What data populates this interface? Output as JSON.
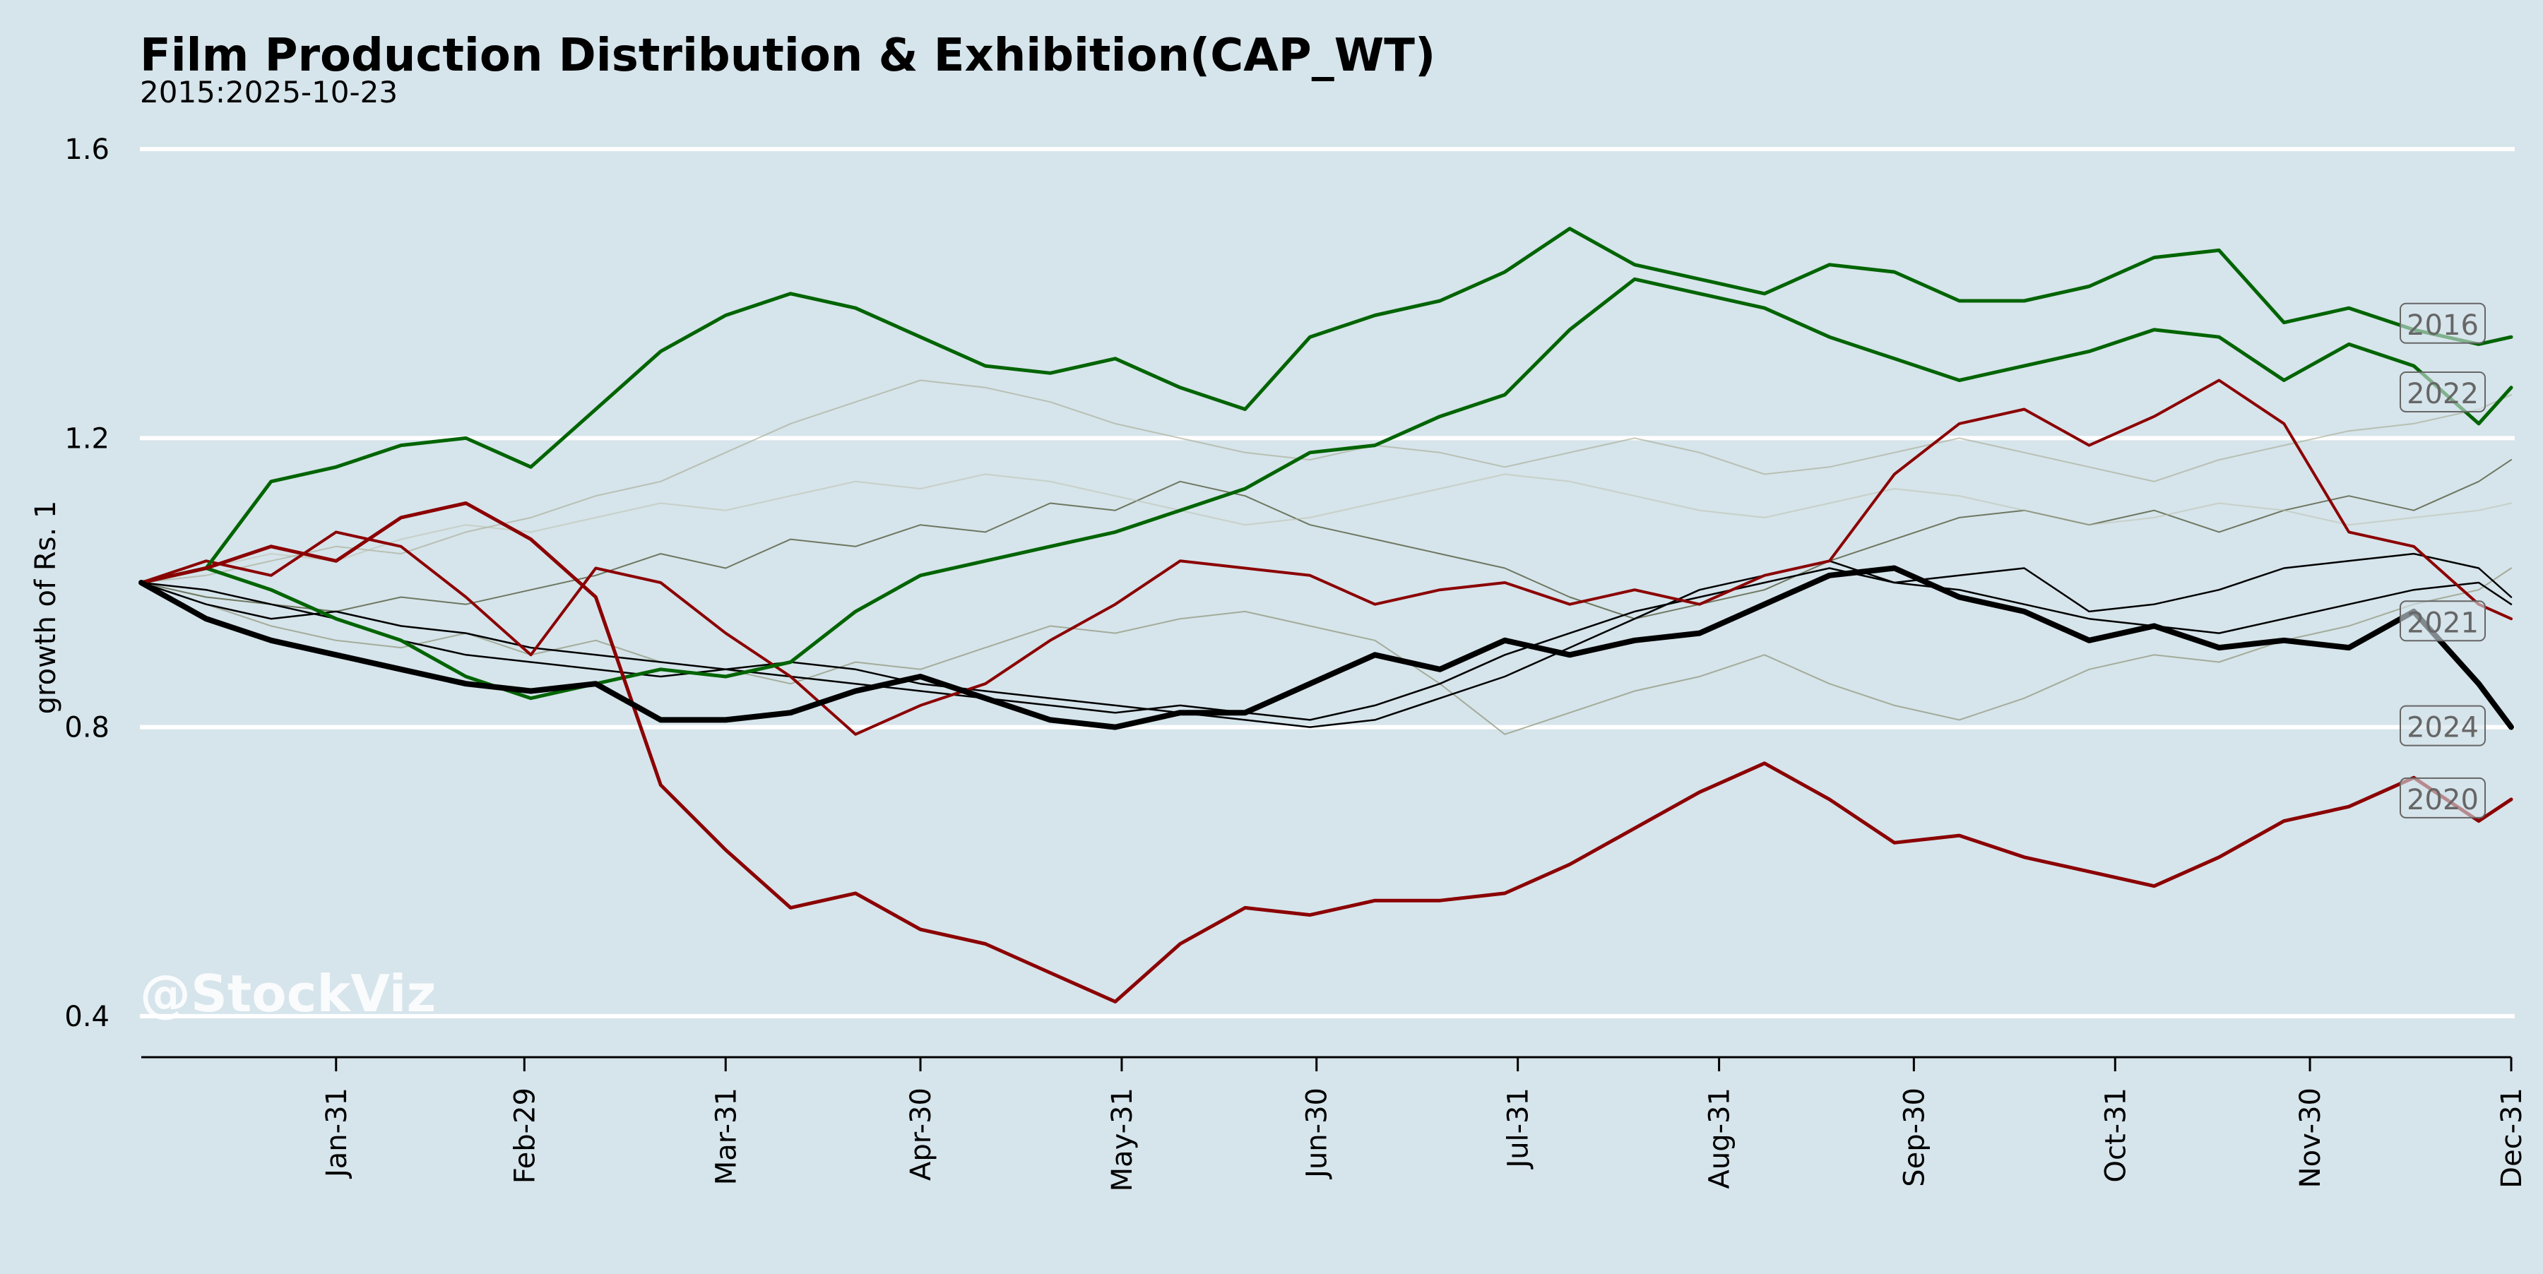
{
  "colors": {
    "background": "#d6e4eb",
    "gridline": "#ffffff",
    "up_year": "#006400",
    "down_year": "#8b0000",
    "current_year": "#000000",
    "label_text": "#666666"
  },
  "chart_data": {
    "type": "line",
    "title": "Film Production Distribution & Exhibition(CAP_WT)",
    "subtitle": "2015:2025-10-23",
    "xlabel": "",
    "ylabel": "growth of Rs. 1",
    "watermark": "@StockViz",
    "x_domain": [
      "01-01",
      "12-31"
    ],
    "xlim": [
      0,
      365
    ],
    "ylim": [
      0.35,
      1.65
    ],
    "yticks": [
      0.4,
      0.8,
      1.2,
      1.6
    ],
    "ytick_labels": [
      "0.4",
      "0.8",
      "1.2",
      "1.6"
    ],
    "xticks": [
      "Jan-31",
      "Feb-29",
      "Mar-31",
      "Apr-30",
      "May-31",
      "Jun-30",
      "Jul-31",
      "Aug-31",
      "Sep-30",
      "Oct-31",
      "Nov-30",
      "Dec-31"
    ],
    "xtick_days": [
      30,
      59,
      90,
      120,
      151,
      181,
      212,
      243,
      273,
      304,
      334,
      365
    ],
    "grid": "horizontal",
    "legend": "end-of-line labels",
    "series": [
      {
        "label": "2016",
        "color": "#006400",
        "width": 5,
        "opacity": 1,
        "x": [
          0,
          10,
          20,
          30,
          40,
          50,
          60,
          70,
          80,
          90,
          100,
          110,
          120,
          130,
          140,
          150,
          160,
          170,
          180,
          190,
          200,
          210,
          220,
          230,
          240,
          250,
          260,
          270,
          280,
          290,
          300,
          310,
          320,
          330,
          340,
          350,
          360,
          365
        ],
        "y": [
          1.0,
          1.02,
          1.14,
          1.16,
          1.19,
          1.2,
          1.16,
          1.24,
          1.32,
          1.37,
          1.4,
          1.38,
          1.34,
          1.3,
          1.29,
          1.31,
          1.27,
          1.24,
          1.34,
          1.37,
          1.39,
          1.43,
          1.49,
          1.44,
          1.42,
          1.4,
          1.44,
          1.43,
          1.39,
          1.39,
          1.41,
          1.45,
          1.46,
          1.36,
          1.38,
          1.35,
          1.33,
          1.34
        ]
      },
      {
        "label": "2022",
        "color": "#006400",
        "width": 5,
        "opacity": 1,
        "x": [
          0,
          10,
          20,
          30,
          40,
          50,
          60,
          70,
          80,
          90,
          100,
          110,
          120,
          130,
          140,
          150,
          160,
          170,
          180,
          190,
          200,
          210,
          220,
          230,
          240,
          250,
          260,
          270,
          280,
          290,
          300,
          310,
          320,
          330,
          340,
          350,
          360,
          365
        ],
        "y": [
          1.0,
          1.02,
          0.99,
          0.95,
          0.92,
          0.87,
          0.84,
          0.86,
          0.88,
          0.87,
          0.89,
          0.96,
          1.01,
          1.03,
          1.05,
          1.07,
          1.1,
          1.13,
          1.18,
          1.19,
          1.23,
          1.26,
          1.35,
          1.42,
          1.4,
          1.38,
          1.34,
          1.31,
          1.28,
          1.3,
          1.32,
          1.35,
          1.34,
          1.28,
          1.33,
          1.3,
          1.22,
          1.27
        ]
      },
      {
        "label": "2021",
        "color": "#000000",
        "width": 2.5,
        "opacity": 1,
        "x": [
          0,
          10,
          20,
          30,
          40,
          50,
          60,
          70,
          80,
          90,
          100,
          110,
          120,
          130,
          140,
          150,
          160,
          170,
          180,
          190,
          200,
          210,
          220,
          230,
          240,
          250,
          260,
          270,
          280,
          290,
          300,
          310,
          320,
          330,
          340,
          350,
          360,
          365
        ],
        "y": [
          1.0,
          0.97,
          0.95,
          0.96,
          0.94,
          0.93,
          0.91,
          0.9,
          0.89,
          0.88,
          0.87,
          0.86,
          0.85,
          0.84,
          0.83,
          0.82,
          0.83,
          0.82,
          0.81,
          0.83,
          0.86,
          0.9,
          0.93,
          0.96,
          0.98,
          1.0,
          1.02,
          1.0,
          0.99,
          0.97,
          0.95,
          0.94,
          0.93,
          0.95,
          0.97,
          0.99,
          1.0,
          0.97
        ]
      },
      {
        "label": "2024",
        "color": "#000000",
        "width": 8,
        "opacity": 1,
        "x": [
          0,
          10,
          20,
          30,
          40,
          50,
          60,
          70,
          80,
          90,
          100,
          110,
          120,
          130,
          140,
          150,
          160,
          170,
          180,
          190,
          200,
          210,
          220,
          230,
          240,
          250,
          260,
          270,
          280,
          290,
          300,
          310,
          320,
          330,
          340,
          350,
          360,
          365
        ],
        "y": [
          1.0,
          0.95,
          0.92,
          0.9,
          0.88,
          0.86,
          0.85,
          0.86,
          0.81,
          0.81,
          0.82,
          0.85,
          0.87,
          0.84,
          0.81,
          0.8,
          0.82,
          0.82,
          0.86,
          0.9,
          0.88,
          0.92,
          0.9,
          0.92,
          0.93,
          0.97,
          1.01,
          1.02,
          0.98,
          0.96,
          0.92,
          0.94,
          0.91,
          0.92,
          0.91,
          0.96,
          0.86,
          0.8
        ]
      },
      {
        "label": "2020",
        "color": "#8b0000",
        "width": 5,
        "opacity": 1,
        "x": [
          0,
          10,
          20,
          30,
          40,
          50,
          60,
          70,
          80,
          90,
          100,
          110,
          120,
          130,
          140,
          150,
          160,
          170,
          180,
          190,
          200,
          210,
          220,
          230,
          240,
          250,
          260,
          270,
          280,
          290,
          300,
          310,
          320,
          330,
          340,
          350,
          360,
          365
        ],
        "y": [
          1.0,
          1.02,
          1.05,
          1.03,
          1.09,
          1.11,
          1.06,
          0.98,
          0.72,
          0.63,
          0.55,
          0.57,
          0.52,
          0.5,
          0.46,
          0.42,
          0.5,
          0.55,
          0.54,
          0.56,
          0.56,
          0.57,
          0.61,
          0.66,
          0.71,
          0.75,
          0.7,
          0.64,
          0.65,
          0.62,
          0.6,
          0.58,
          0.62,
          0.67,
          0.69,
          0.73,
          0.67,
          0.7
        ]
      },
      {
        "label": "",
        "color": "#8b0000",
        "width": 4,
        "opacity": 1,
        "x": [
          0,
          10,
          20,
          30,
          40,
          50,
          60,
          70,
          80,
          90,
          100,
          110,
          120,
          130,
          140,
          150,
          160,
          170,
          180,
          190,
          200,
          210,
          220,
          230,
          240,
          250,
          260,
          270,
          280,
          290,
          300,
          310,
          320,
          330,
          340,
          350,
          360,
          365
        ],
        "y": [
          1.0,
          1.03,
          1.01,
          1.07,
          1.05,
          0.98,
          0.9,
          1.02,
          1.0,
          0.93,
          0.87,
          0.79,
          0.83,
          0.86,
          0.92,
          0.97,
          1.03,
          1.02,
          1.01,
          0.97,
          0.99,
          1.0,
          0.97,
          0.99,
          0.97,
          1.01,
          1.03,
          1.15,
          1.22,
          1.24,
          1.19,
          1.23,
          1.28,
          1.22,
          1.07,
          1.05,
          0.97,
          0.95
        ]
      },
      {
        "label": "",
        "color": "#000000",
        "width": 2.5,
        "opacity": 1,
        "x": [
          0,
          10,
          20,
          30,
          40,
          50,
          60,
          70,
          80,
          90,
          100,
          110,
          120,
          130,
          140,
          150,
          160,
          170,
          180,
          190,
          200,
          210,
          220,
          230,
          240,
          250,
          260,
          270,
          280,
          290,
          300,
          310,
          320,
          330,
          340,
          350,
          360,
          365
        ],
        "y": [
          1.0,
          0.99,
          0.97,
          0.95,
          0.92,
          0.9,
          0.89,
          0.88,
          0.87,
          0.88,
          0.89,
          0.88,
          0.86,
          0.85,
          0.84,
          0.83,
          0.82,
          0.81,
          0.8,
          0.81,
          0.84,
          0.87,
          0.91,
          0.95,
          0.99,
          1.01,
          1.03,
          1.0,
          1.01,
          1.02,
          0.96,
          0.97,
          0.99,
          1.02,
          1.03,
          1.04,
          1.02,
          0.98
        ]
      },
      {
        "label": "",
        "color": "#5a6448",
        "width": 2,
        "opacity": 0.85,
        "x": [
          0,
          10,
          20,
          30,
          40,
          50,
          60,
          70,
          80,
          90,
          100,
          110,
          120,
          130,
          140,
          150,
          160,
          170,
          180,
          190,
          200,
          210,
          220,
          230,
          240,
          250,
          260,
          270,
          280,
          290,
          300,
          310,
          320,
          330,
          340,
          350,
          360,
          365
        ],
        "y": [
          1.0,
          0.98,
          0.97,
          0.96,
          0.98,
          0.97,
          0.99,
          1.01,
          1.04,
          1.02,
          1.06,
          1.05,
          1.08,
          1.07,
          1.11,
          1.1,
          1.14,
          1.12,
          1.08,
          1.06,
          1.04,
          1.02,
          0.98,
          0.95,
          0.97,
          0.99,
          1.03,
          1.06,
          1.09,
          1.1,
          1.08,
          1.1,
          1.07,
          1.1,
          1.12,
          1.1,
          1.14,
          1.17
        ]
      },
      {
        "label": "",
        "color": "#8d9478",
        "width": 2,
        "opacity": 0.7,
        "x": [
          0,
          10,
          20,
          30,
          40,
          50,
          60,
          70,
          80,
          90,
          100,
          110,
          120,
          130,
          140,
          150,
          160,
          170,
          180,
          190,
          200,
          210,
          220,
          230,
          240,
          250,
          260,
          270,
          280,
          290,
          300,
          310,
          320,
          330,
          340,
          350,
          360,
          365
        ],
        "y": [
          1.0,
          0.97,
          0.94,
          0.92,
          0.91,
          0.93,
          0.9,
          0.92,
          0.89,
          0.88,
          0.86,
          0.89,
          0.88,
          0.91,
          0.94,
          0.93,
          0.95,
          0.96,
          0.94,
          0.92,
          0.86,
          0.79,
          0.82,
          0.85,
          0.87,
          0.9,
          0.86,
          0.83,
          0.81,
          0.84,
          0.88,
          0.9,
          0.89,
          0.92,
          0.94,
          0.97,
          0.99,
          1.02
        ]
      },
      {
        "label": "",
        "color": "#a3a98f",
        "width": 2,
        "opacity": 0.6,
        "x": [
          0,
          10,
          20,
          30,
          40,
          50,
          60,
          70,
          80,
          90,
          100,
          110,
          120,
          130,
          140,
          150,
          160,
          170,
          180,
          190,
          200,
          210,
          220,
          230,
          240,
          250,
          260,
          270,
          280,
          290,
          300,
          310,
          320,
          330,
          340,
          350,
          360,
          365
        ],
        "y": [
          1.0,
          1.01,
          1.03,
          1.05,
          1.04,
          1.07,
          1.09,
          1.12,
          1.14,
          1.18,
          1.22,
          1.25,
          1.28,
          1.27,
          1.25,
          1.22,
          1.2,
          1.18,
          1.17,
          1.19,
          1.18,
          1.16,
          1.18,
          1.2,
          1.18,
          1.15,
          1.16,
          1.18,
          1.2,
          1.18,
          1.16,
          1.14,
          1.17,
          1.19,
          1.21,
          1.22,
          1.24,
          1.26
        ]
      },
      {
        "label": "",
        "color": "#b7bca6",
        "width": 2,
        "opacity": 0.5,
        "x": [
          0,
          10,
          20,
          30,
          40,
          50,
          60,
          70,
          80,
          90,
          100,
          110,
          120,
          130,
          140,
          150,
          160,
          170,
          180,
          190,
          200,
          210,
          220,
          230,
          240,
          250,
          260,
          270,
          280,
          290,
          300,
          310,
          320,
          330,
          340,
          350,
          360,
          365
        ],
        "y": [
          1.0,
          1.02,
          1.04,
          1.03,
          1.06,
          1.08,
          1.07,
          1.09,
          1.11,
          1.1,
          1.12,
          1.14,
          1.13,
          1.15,
          1.14,
          1.12,
          1.1,
          1.08,
          1.09,
          1.11,
          1.13,
          1.15,
          1.14,
          1.12,
          1.1,
          1.09,
          1.11,
          1.13,
          1.12,
          1.1,
          1.08,
          1.09,
          1.11,
          1.1,
          1.08,
          1.09,
          1.1,
          1.11
        ]
      }
    ]
  }
}
